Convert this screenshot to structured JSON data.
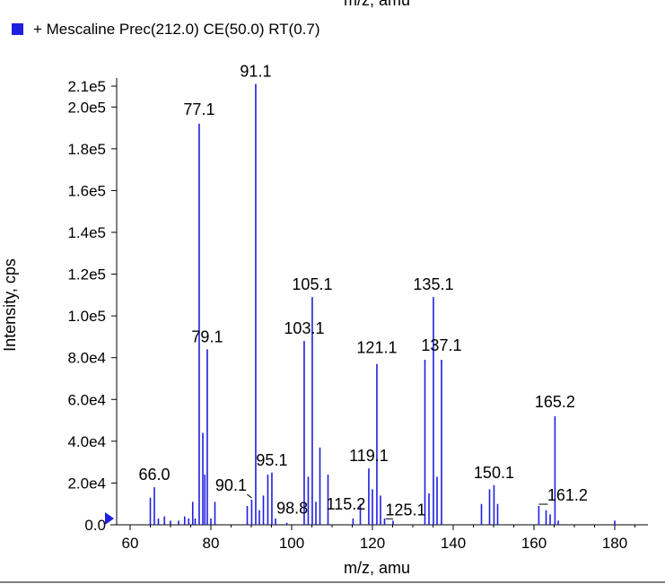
{
  "chart_data": {
    "type": "bar",
    "top_title_fragment": "m/z, amu",
    "legend": {
      "label": "+ Mescaline Prec(212.0) CE(50.0) RT(0.7)",
      "color": "#1f1fe0",
      "placement": "top-left"
    },
    "xlabel": "m/z, amu",
    "ylabel": "Intensity, cps",
    "xlim": [
      53,
      189
    ],
    "ylim": [
      0,
      212000
    ],
    "xticks": [
      60,
      80,
      100,
      120,
      140,
      160,
      180
    ],
    "xtick_labels": [
      "60",
      "80",
      "100",
      "120",
      "140",
      "160",
      "180"
    ],
    "yticks": [
      0,
      20000,
      40000,
      60000,
      80000,
      100000,
      120000,
      140000,
      160000,
      180000,
      200000,
      210000
    ],
    "ytick_labels": [
      "0.0",
      "2.0e4",
      "4.0e4",
      "6.0e4",
      "8.0e4",
      "1.0e5",
      "1.2e5",
      "1.4e5",
      "1.6e5",
      "1.8e5",
      "2.0e5",
      "2.1e5"
    ],
    "series": [
      {
        "color": "#1f1fe0",
        "peaks": [
          {
            "mz": 65.0,
            "intensity": 13000
          },
          {
            "mz": 66.0,
            "intensity": 18000,
            "label": "66.0"
          },
          {
            "mz": 67.0,
            "intensity": 3000
          },
          {
            "mz": 68.5,
            "intensity": 4000
          },
          {
            "mz": 70.0,
            "intensity": 2000
          },
          {
            "mz": 72.0,
            "intensity": 2000
          },
          {
            "mz": 73.5,
            "intensity": 4000
          },
          {
            "mz": 74.5,
            "intensity": 3000
          },
          {
            "mz": 75.5,
            "intensity": 11000
          },
          {
            "mz": 76.1,
            "intensity": 3000
          },
          {
            "mz": 77.1,
            "intensity": 192000,
            "label": "77.1"
          },
          {
            "mz": 78.0,
            "intensity": 44000
          },
          {
            "mz": 78.5,
            "intensity": 24000
          },
          {
            "mz": 79.1,
            "intensity": 84000,
            "label": "79.1"
          },
          {
            "mz": 80.0,
            "intensity": 3000
          },
          {
            "mz": 81.0,
            "intensity": 11000
          },
          {
            "mz": 89.0,
            "intensity": 9000
          },
          {
            "mz": 90.1,
            "intensity": 12000,
            "label": "90.1"
          },
          {
            "mz": 91.1,
            "intensity": 211000,
            "label": "91.1"
          },
          {
            "mz": 92.0,
            "intensity": 7000
          },
          {
            "mz": 93.0,
            "intensity": 14000
          },
          {
            "mz": 94.1,
            "intensity": 24000
          },
          {
            "mz": 95.1,
            "intensity": 25000,
            "label": "95.1"
          },
          {
            "mz": 96.0,
            "intensity": 3000
          },
          {
            "mz": 98.8,
            "intensity": 1000,
            "label": "98.8"
          },
          {
            "mz": 103.1,
            "intensity": 88000,
            "label": "103.1"
          },
          {
            "mz": 104.1,
            "intensity": 23000
          },
          {
            "mz": 105.1,
            "intensity": 109000,
            "label": "105.1"
          },
          {
            "mz": 106.0,
            "intensity": 11000
          },
          {
            "mz": 107.0,
            "intensity": 37000
          },
          {
            "mz": 109.0,
            "intensity": 24000
          },
          {
            "mz": 115.2,
            "intensity": 3000,
            "label": "115.2"
          },
          {
            "mz": 117.0,
            "intensity": 10000
          },
          {
            "mz": 119.1,
            "intensity": 27000,
            "label": "119.1"
          },
          {
            "mz": 120.0,
            "intensity": 17000
          },
          {
            "mz": 121.1,
            "intensity": 77000,
            "label": "121.1"
          },
          {
            "mz": 122.0,
            "intensity": 14000
          },
          {
            "mz": 123.0,
            "intensity": 3000
          },
          {
            "mz": 125.1,
            "intensity": 2000,
            "label": "125.1"
          },
          {
            "mz": 133.0,
            "intensity": 79000
          },
          {
            "mz": 134.0,
            "intensity": 15000
          },
          {
            "mz": 135.1,
            "intensity": 109000,
            "label": "135.1"
          },
          {
            "mz": 136.0,
            "intensity": 23000
          },
          {
            "mz": 137.1,
            "intensity": 79000,
            "label": "137.1"
          },
          {
            "mz": 147.0,
            "intensity": 10000
          },
          {
            "mz": 149.0,
            "intensity": 17000
          },
          {
            "mz": 150.1,
            "intensity": 19000,
            "label": "150.1"
          },
          {
            "mz": 151.0,
            "intensity": 10000
          },
          {
            "mz": 161.2,
            "intensity": 9000,
            "label": "161.2"
          },
          {
            "mz": 163.0,
            "intensity": 7000
          },
          {
            "mz": 164.0,
            "intensity": 5000
          },
          {
            "mz": 165.2,
            "intensity": 52000,
            "label": "165.2"
          },
          {
            "mz": 166.0,
            "intensity": 2000
          },
          {
            "mz": 180.0,
            "intensity": 2000
          }
        ]
      }
    ]
  }
}
